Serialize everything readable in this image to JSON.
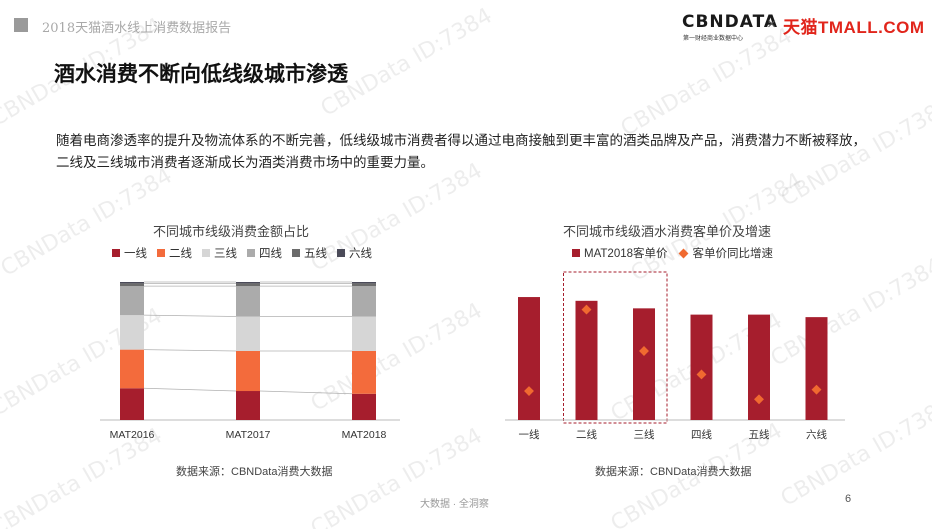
{
  "header": {
    "report_title": "2018天猫酒水线上消费数据报告",
    "cbn_logo": "CBNDATA",
    "cbn_subtitle": "第一财经商业数据中心",
    "separator": "×",
    "tmall_logo": "天猫TMALL.COM"
  },
  "watermark": "CBNData ID:7384",
  "page_title": "酒水消费不断向低线级城市渗透",
  "intro": "随着电商渗透率的提升及物流体系的不断完善，低线级城市消费者得以通过电商接触到更丰富的酒类品牌及产品，消费潜力不断被释放，二线及三线城市消费者逐渐成长为酒类消费市场中的重要力量。",
  "chart_data": [
    {
      "type": "bar",
      "stacked": "percent",
      "title": "不同城市线级消费金额占比",
      "categories": [
        "MAT2016",
        "MAT2017",
        "MAT2018"
      ],
      "series": [
        {
          "name": "一线",
          "color": "#a61e2d",
          "values": [
            0.23,
            0.21,
            0.19
          ]
        },
        {
          "name": "二线",
          "color": "#f36b3c",
          "values": [
            0.28,
            0.29,
            0.31
          ]
        },
        {
          "name": "三线",
          "color": "#d6d6d6",
          "values": [
            0.25,
            0.25,
            0.25
          ]
        },
        {
          "name": "四线",
          "color": "#ababab",
          "values": [
            0.21,
            0.22,
            0.22
          ]
        },
        {
          "name": "五线",
          "color": "#6b6b6b",
          "values": [
            0.02,
            0.02,
            0.02
          ]
        },
        {
          "name": "六线",
          "color": "#4a4a58",
          "values": [
            0.01,
            0.01,
            0.01
          ]
        }
      ],
      "legend": "top",
      "grid": false,
      "connector_lines": true,
      "source": "数据来源：CBNData消费大数据"
    },
    {
      "type": "bar",
      "title": "不同城市线级酒水消费客单价及增速",
      "categories": [
        "一线",
        "二线",
        "三线",
        "四线",
        "五线",
        "六线"
      ],
      "series": [
        {
          "name": "MAT2018客单价",
          "color": "#a61e2d",
          "values": [
            98,
            95,
            89,
            84,
            84,
            82
          ]
        },
        {
          "name": "客单价同比增速",
          "color": "#f06a30",
          "marker": "diamond",
          "values": [
            0.21,
            0.8,
            0.5,
            0.33,
            0.15,
            0.22
          ]
        }
      ],
      "highlight": [
        "二线",
        "三线"
      ],
      "legend": "top",
      "grid": false,
      "source": "数据来源：CBNData消费大数据"
    }
  ],
  "footer": {
    "tagline": "大数据 · 全洞察",
    "page_number": "6"
  }
}
